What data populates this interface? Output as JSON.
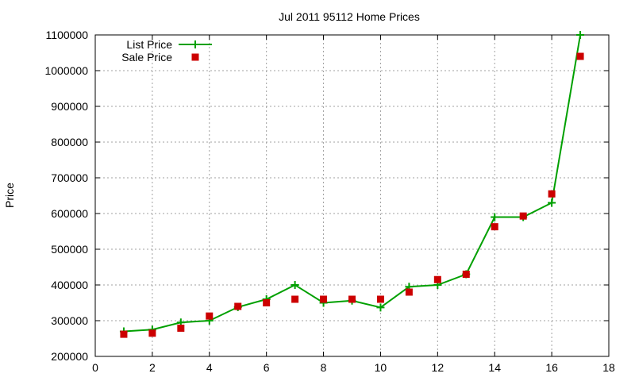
{
  "chart_data": {
    "type": "line",
    "title": "Jul 2011 95112 Home Prices",
    "xlabel": "",
    "ylabel": "Price",
    "xlim": [
      0,
      18
    ],
    "ylim": [
      200000,
      1100000
    ],
    "xticks": [
      0,
      2,
      4,
      6,
      8,
      10,
      12,
      14,
      16,
      18
    ],
    "yticks": [
      200000,
      300000,
      400000,
      500000,
      600000,
      700000,
      800000,
      900000,
      1000000,
      1100000
    ],
    "grid": true,
    "legend_position": "top-left",
    "x": [
      1,
      2,
      3,
      4,
      5,
      6,
      7,
      8,
      9,
      10,
      11,
      12,
      13,
      14,
      15,
      16,
      17
    ],
    "series": [
      {
        "name": "List Price",
        "style": "linespoints",
        "marker": "plus",
        "color": "#00a000",
        "values": [
          270000,
          275000,
          295000,
          300000,
          338000,
          360000,
          400000,
          350000,
          356000,
          337000,
          395000,
          400000,
          430000,
          590000,
          590000,
          630000,
          1100000
        ]
      },
      {
        "name": "Sale Price",
        "style": "points",
        "marker": "square",
        "color": "#cc0000",
        "values": [
          262000,
          265000,
          279000,
          313000,
          340000,
          350000,
          360000,
          360000,
          360000,
          360000,
          380000,
          415000,
          430000,
          563000,
          593000,
          655000,
          1040000
        ]
      }
    ]
  }
}
